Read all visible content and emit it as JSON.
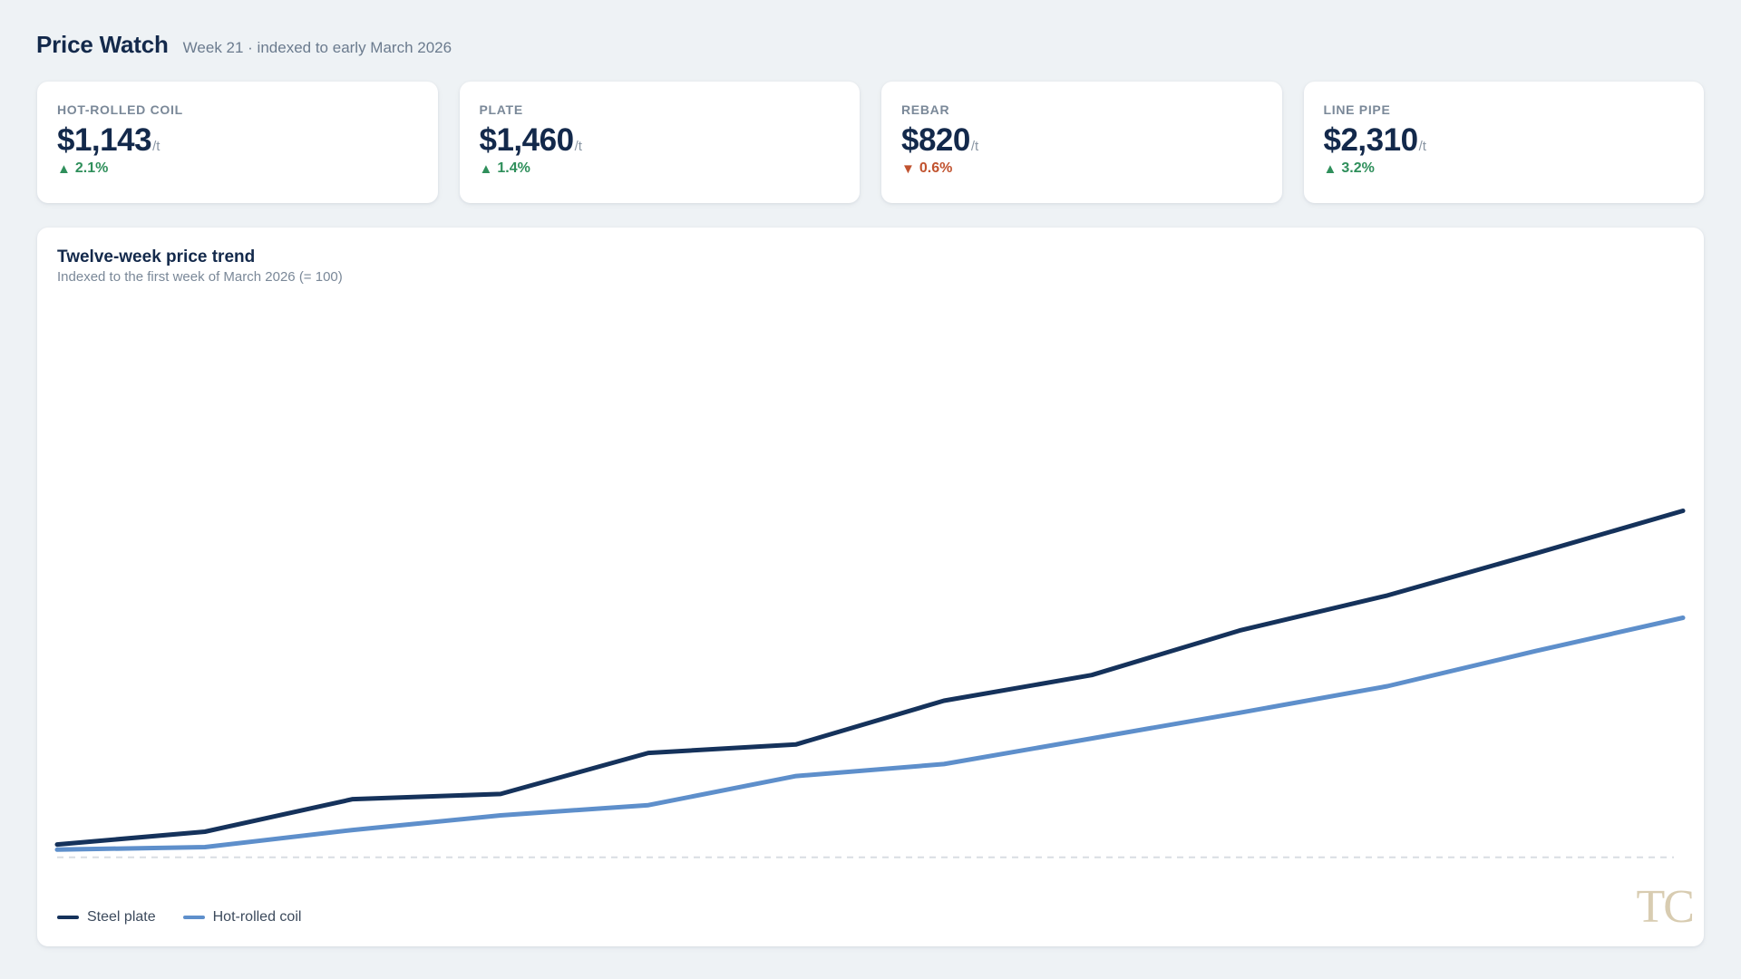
{
  "header": {
    "title": "Price Watch",
    "subtitle": "Week 21 · indexed to early March 2026"
  },
  "kpis": [
    {
      "label": "HOT-ROLLED COIL",
      "value": "$1,143",
      "unit": "/t",
      "change": "2.1%",
      "direction": "up"
    },
    {
      "label": "PLATE",
      "value": "$1,460",
      "unit": "/t",
      "change": "1.4%",
      "direction": "up"
    },
    {
      "label": "REBAR",
      "value": "$820",
      "unit": "/t",
      "change": "0.6%",
      "direction": "down"
    },
    {
      "label": "LINE PIPE",
      "value": "$2,310",
      "unit": "/t",
      "change": "3.2%",
      "direction": "up"
    }
  ],
  "chart": {
    "title": "Twelve-week price trend",
    "subtitle": "Indexed to the first week of March 2026 (= 100)"
  },
  "colors": {
    "up": "#2f8f5b",
    "down": "#c1532f",
    "steel_plate": "#15325b",
    "hot_rolled_coil": "#5e8fcb",
    "baseline": "#d9dde3"
  },
  "legend": [
    {
      "label": "Steel plate",
      "color": "#15325b"
    },
    {
      "label": "Hot-rolled coil",
      "color": "#5e8fcb"
    }
  ],
  "watermark": "TC",
  "chart_data": {
    "type": "line",
    "title": "Twelve-week price trend",
    "subtitle": "Indexed to the first week of March 2026 (= 100)",
    "x": [
      1,
      2,
      3,
      4,
      5,
      6,
      7,
      8,
      9,
      10,
      11,
      12
    ],
    "ylim": [
      95,
      145
    ],
    "baseline": 100,
    "grid": false,
    "legend_position": "bottom-left",
    "series": [
      {
        "name": "Steel plate",
        "color": "#15325b",
        "values": [
          101.5,
          103.0,
          106.8,
          107.4,
          112.2,
          113.2,
          118.3,
          121.3,
          126.5,
          130.6,
          135.5,
          140.5
        ]
      },
      {
        "name": "Hot-rolled coil",
        "color": "#5e8fcb",
        "values": [
          100.9,
          101.2,
          103.2,
          104.9,
          106.1,
          109.5,
          110.9,
          113.9,
          116.9,
          120.0,
          124.1,
          128.0
        ]
      }
    ]
  }
}
